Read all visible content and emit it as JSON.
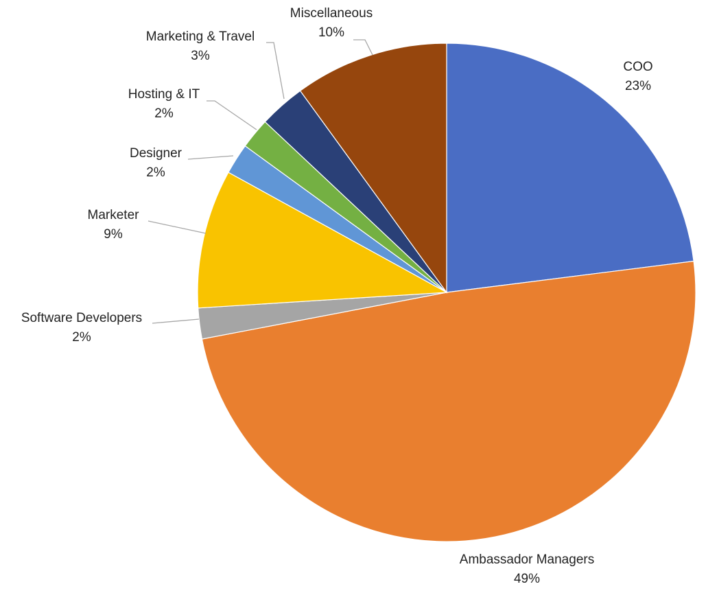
{
  "chart_data": {
    "type": "pie",
    "title": "",
    "start": "top, clockwise",
    "slices": [
      {
        "label": "COO",
        "value": 23,
        "display": "23%",
        "color": "#4A6DC4"
      },
      {
        "label": "Ambassador Managers",
        "value": 49,
        "display": "49%",
        "color": "#E97F2F"
      },
      {
        "label": "Software Developers",
        "value": 2,
        "display": "2%",
        "color": "#A5A5A5"
      },
      {
        "label": "Marketer",
        "value": 9,
        "display": "9%",
        "color": "#F9C300"
      },
      {
        "label": "Designer",
        "value": 2,
        "display": "2%",
        "color": "#6096D6"
      },
      {
        "label": "Hosting & IT",
        "value": 2,
        "display": "2%",
        "color": "#74B043"
      },
      {
        "label": "Marketing & Travel",
        "value": 3,
        "display": "3%",
        "color": "#2A4077"
      },
      {
        "label": "Miscellaneous",
        "value": 10,
        "display": "10%",
        "color": "#96460D"
      }
    ]
  }
}
